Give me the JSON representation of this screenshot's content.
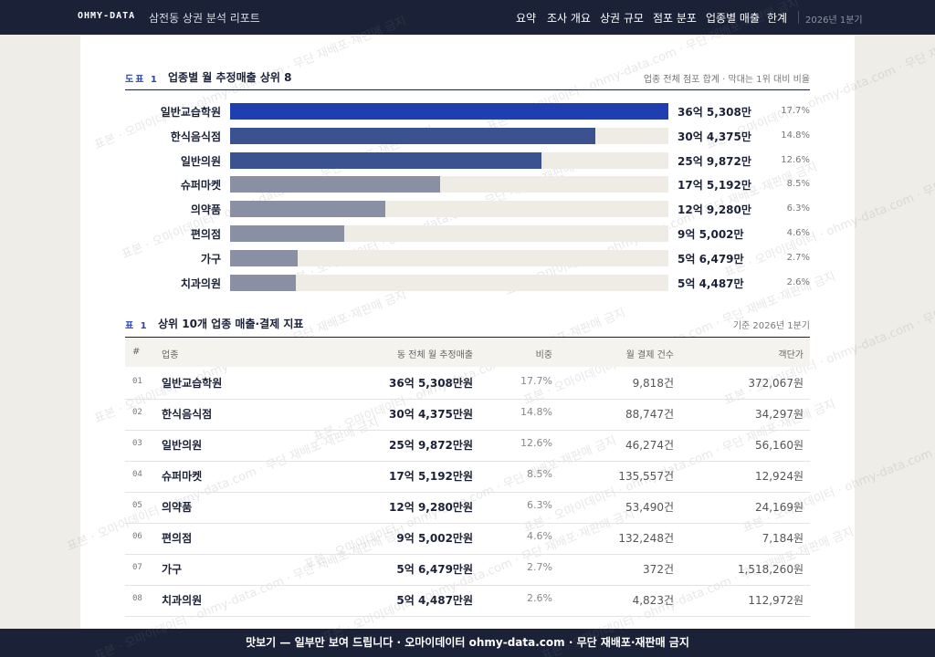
{
  "nav": {
    "brand": "OHMY-DATA",
    "report": "삼전동 상권 분석 리포트",
    "links": [
      "요약",
      "조사 개요",
      "상권 규모",
      "점포 분포",
      "업종별 매출",
      "한계"
    ],
    "period": "2026년 1분기"
  },
  "chart_data": {
    "type": "bar",
    "label": "도표 1",
    "title": "업종별 월 추정매출 상위 8",
    "note": "업종 전체 점포 합계 · 막대는 1위 대비 비율",
    "categories": [
      "일반교습학원",
      "한식음식점",
      "일반의원",
      "슈퍼마켓",
      "의약품",
      "편의점",
      "가구",
      "치과의원"
    ],
    "values": [
      365308,
      304375,
      259872,
      175192,
      129280,
      95002,
      56479,
      54487
    ],
    "value_labels": [
      "36억 5,308만",
      "30억 4,375만",
      "25억 9,872만",
      "17억 5,192만",
      "12억 9,280만",
      "9억 5,002만",
      "5억 6,479만",
      "5억 4,487만"
    ],
    "share_labels": [
      "17.7%",
      "14.8%",
      "12.6%",
      "8.5%",
      "6.3%",
      "4.6%",
      "2.7%",
      "2.6%"
    ],
    "colors": [
      "#1f3fb0",
      "#3a5290",
      "#3a5290",
      "#8990a4",
      "#8990a4",
      "#8990a4",
      "#8990a4",
      "#8990a4"
    ],
    "track_color": "#efece6"
  },
  "table": {
    "label": "표 1",
    "title": "상위 10개 업종 매출·결제 지표",
    "note": "기준 2026년 1분기",
    "header": [
      "#",
      "업종",
      "동 전체 월 추정매출",
      "비중",
      "월 결제 건수",
      "객단가"
    ],
    "rows": [
      [
        "01",
        "일반교습학원",
        "36억 5,308만원",
        "17.7%",
        "9,818건",
        "372,067원"
      ],
      [
        "02",
        "한식음식점",
        "30억 4,375만원",
        "14.8%",
        "88,747건",
        "34,297원"
      ],
      [
        "03",
        "일반의원",
        "25억 9,872만원",
        "12.6%",
        "46,274건",
        "56,160원"
      ],
      [
        "04",
        "슈퍼마켓",
        "17억 5,192만원",
        "8.5%",
        "135,557건",
        "12,924원"
      ],
      [
        "05",
        "의약품",
        "12억 9,280만원",
        "6.3%",
        "53,490건",
        "24,169원"
      ],
      [
        "06",
        "편의점",
        "9억 5,002만원",
        "4.6%",
        "132,248건",
        "7,184원"
      ],
      [
        "07",
        "가구",
        "5억 6,479만원",
        "2.7%",
        "372건",
        "1,518,260원"
      ],
      [
        "08",
        "치과의원",
        "5억 4,487만원",
        "2.6%",
        "4,823건",
        "112,972원"
      ]
    ]
  },
  "watermark": "표본 · 오마이데이터 · ohmy-data.com · 무단 재배포·재판매 금지",
  "footer": "맛보기 — 일부만 보여 드립니다 · 오마이데이터 ohmy-data.com · 무단 재배포·재판매 금지"
}
